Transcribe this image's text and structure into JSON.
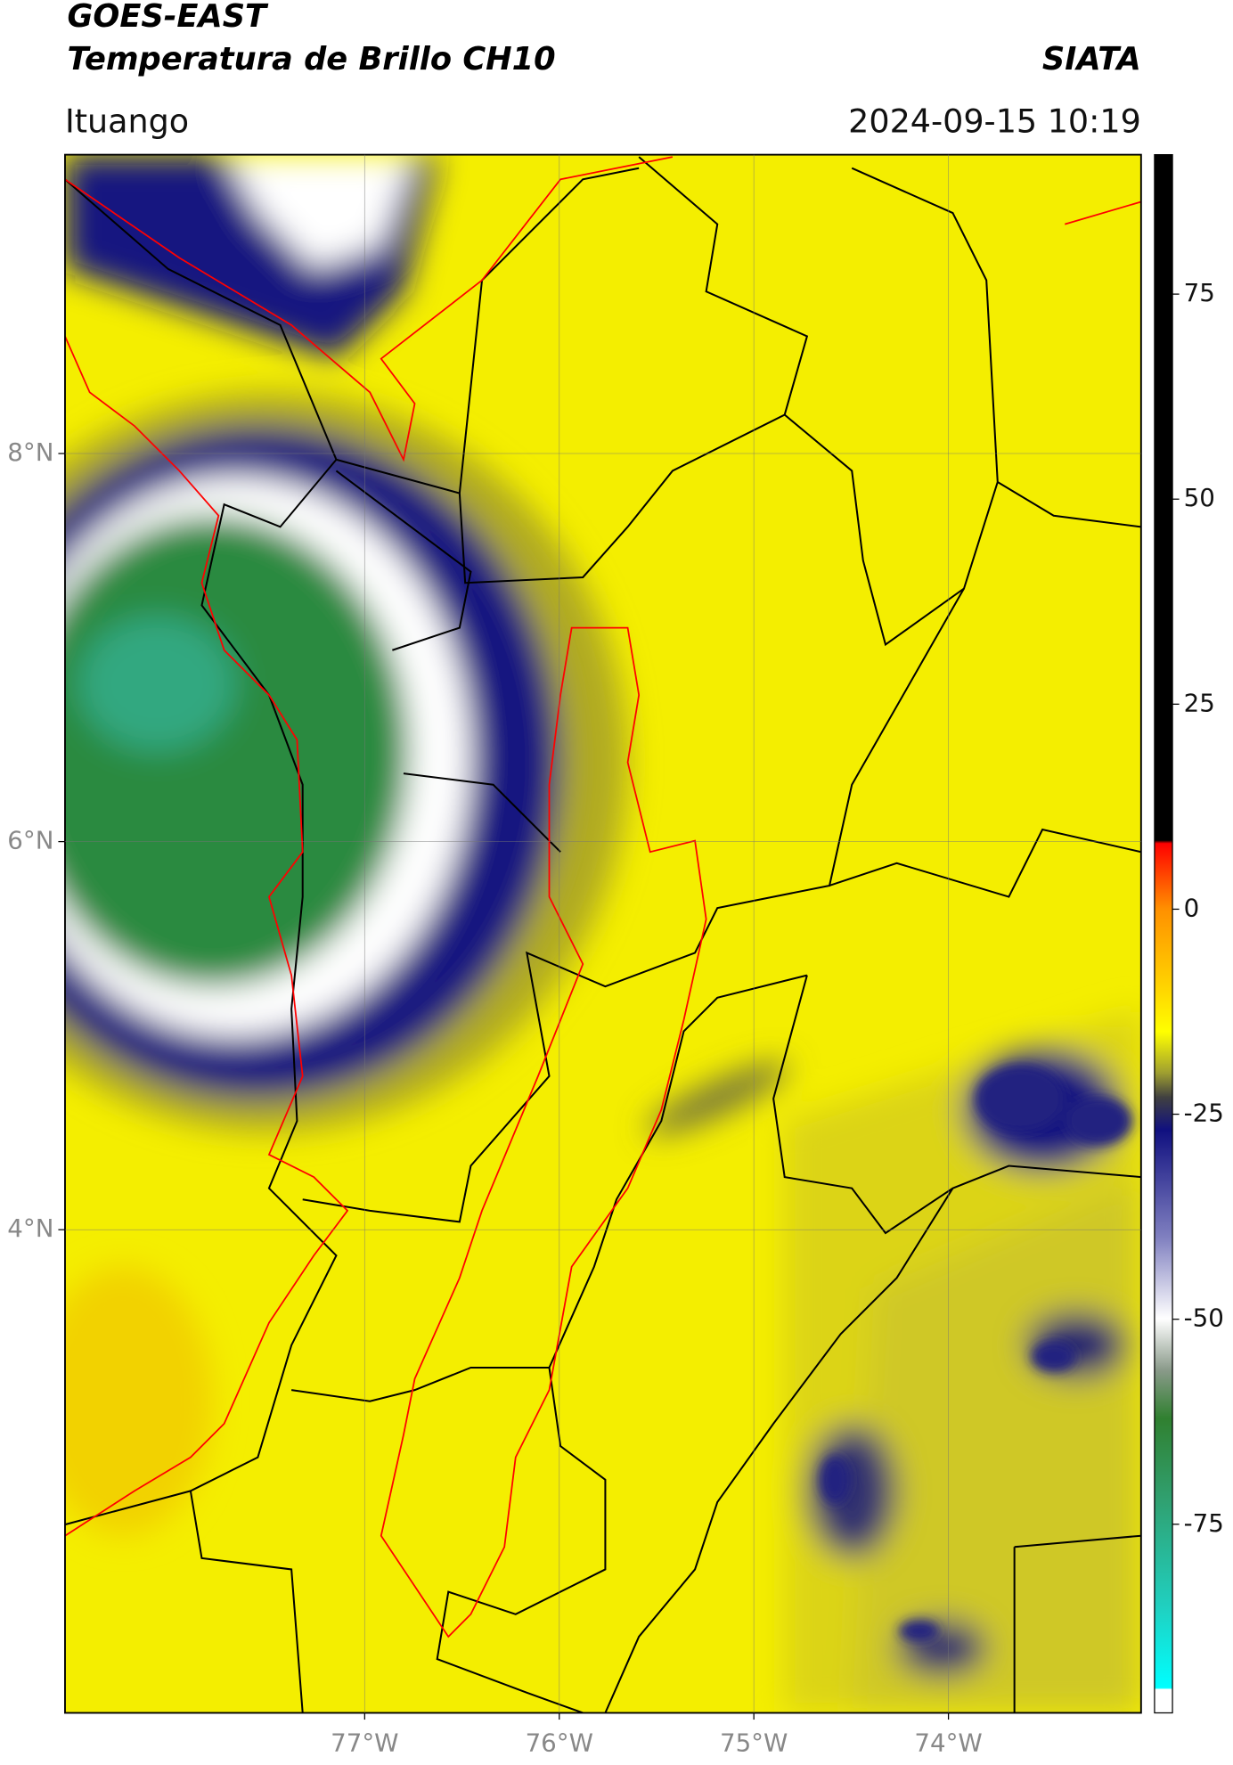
{
  "header": {
    "title": "GOES-EAST",
    "subtitle": "Temperatura de Brillo CH10",
    "agency": "SIATA",
    "location": "Ituango",
    "timestamp": "2024-09-15 10:19"
  },
  "map": {
    "lonlim": [
      -78.54,
      -73.01
    ],
    "latlim": [
      1.51,
      9.54
    ],
    "lon_ticks": [
      {
        "value": -77,
        "label": "77°W"
      },
      {
        "value": -76,
        "label": "76°W"
      },
      {
        "value": -75,
        "label": "75°W"
      },
      {
        "value": -74,
        "label": "74°W"
      }
    ],
    "lat_ticks": [
      {
        "value": 8,
        "label": "8°N"
      },
      {
        "value": 6,
        "label": "6°N"
      },
      {
        "value": 4,
        "label": "4°N"
      }
    ],
    "grid": true
  },
  "colorbar": {
    "lim": [
      -98,
      92
    ],
    "ticks": [
      75,
      50,
      25,
      0,
      -25,
      -50,
      -75
    ]
  }
}
